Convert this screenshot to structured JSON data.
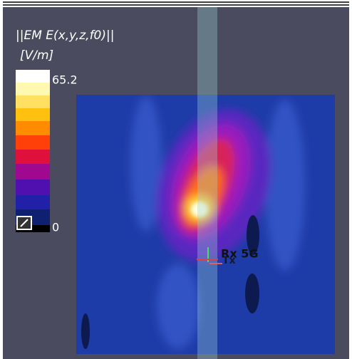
{
  "legend": {
    "title": "||EM E(x,y,z,f0)||",
    "unit": "[V/m]",
    "max": 65.2,
    "min": 0
  },
  "annotations": {
    "receiver": "Rx 5G",
    "transmitter": "Tx"
  }
}
